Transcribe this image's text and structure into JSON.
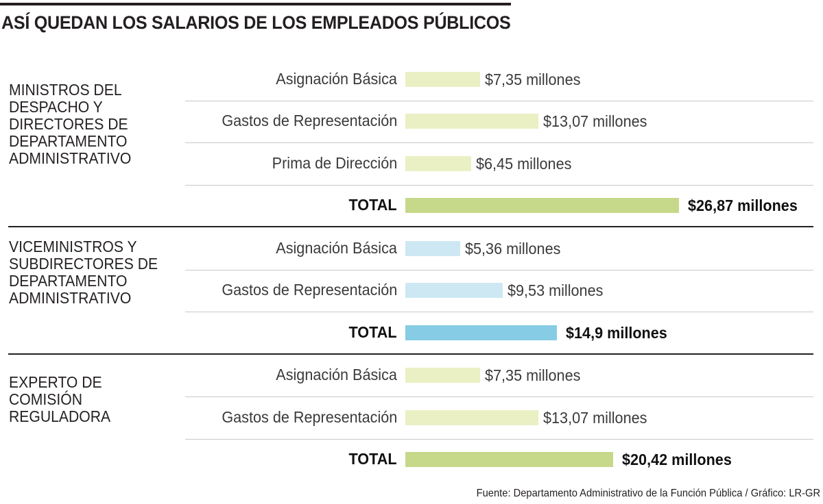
{
  "title": "ASÍ QUEDAN LOS SALARIOS DE LOS EMPLEADOS PÚBLICOS",
  "source": "Fuente: Departamento Administrativo de la Función Pública / Gráfico: LR-GR",
  "colors": {
    "green_light": "#eaf0c4",
    "green_total": "#c6d98a",
    "blue_light": "#cde8f2",
    "blue_total": "#86cce4",
    "rule": "#231f20"
  },
  "chart_data": {
    "type": "bar",
    "orientation": "horizontal",
    "unit": "millones",
    "groups": [
      {
        "label": "MINISTROS DEL\nDESPACHO Y\nDIRECTORES DE\nDEPARTAMENTO\nADMINISTRATIVO",
        "color": "green",
        "rows": [
          {
            "label": "Asignación Básica",
            "value": 7.35,
            "value_label": "$7,35 millones",
            "total": false
          },
          {
            "label": "Gastos de Representación",
            "value": 13.07,
            "value_label": "$13,07 millones",
            "total": false
          },
          {
            "label": "Prima de Dirección",
            "value": 6.45,
            "value_label": "$6,45 millones",
            "total": false
          },
          {
            "label": "TOTAL",
            "value": 26.87,
            "value_label": "$26,87 millones",
            "total": true
          }
        ]
      },
      {
        "label": "VICEMINISTROS Y\nSUBDIRECTORES DE\nDEPARTAMENTO\nADMINISTRATIVO",
        "color": "blue",
        "rows": [
          {
            "label": "Asignación Básica",
            "value": 5.36,
            "value_label": "$5,36 millones",
            "total": false
          },
          {
            "label": "Gastos de Representación",
            "value": 9.53,
            "value_label": "$9,53 millones",
            "total": false
          },
          {
            "label": "TOTAL",
            "value": 14.9,
            "value_label": "$14,9 millones",
            "total": true
          }
        ]
      },
      {
        "label": "EXPERTO DE\nCOMISIÓN\nREGULADORA",
        "color": "green",
        "rows": [
          {
            "label": "Asignación Básica",
            "value": 7.35,
            "value_label": "$7,35 millones",
            "total": false
          },
          {
            "label": "Gastos de Representación",
            "value": 13.07,
            "value_label": "$13,07 millones",
            "total": false
          },
          {
            "label": "TOTAL",
            "value": 20.42,
            "value_label": "$20,42 millones",
            "total": true
          }
        ]
      }
    ]
  }
}
